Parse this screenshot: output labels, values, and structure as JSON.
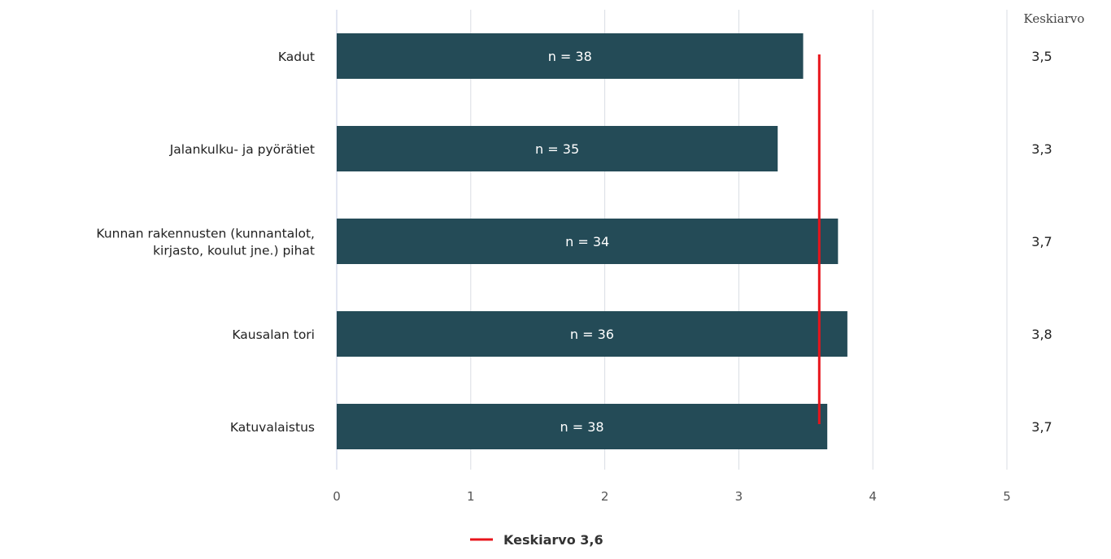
{
  "chart_data": {
    "type": "bar",
    "orientation": "horizontal",
    "categories": [
      [
        "Kadut"
      ],
      [
        "Jalankulku- ja pyörätiet"
      ],
      [
        "Kunnan rakennusten (kunnantalot,",
        "kirjasto, koulut jne.) pihat"
      ],
      [
        "Kausalan tori"
      ],
      [
        "Katuvalaistus"
      ]
    ],
    "values": [
      3.48,
      3.29,
      3.74,
      3.81,
      3.66
    ],
    "bar_labels": [
      "n = 38",
      "n = 35",
      "n = 34",
      "n = 36",
      "n = 38"
    ],
    "averages_column_title": "Keskiarvo",
    "averages": [
      "3,5",
      "3,3",
      "3,7",
      "3,8",
      "3,7"
    ],
    "xlim": [
      0,
      5
    ],
    "x_ticks": [
      0,
      1,
      2,
      3,
      4,
      5
    ],
    "grid": true,
    "reference_line": {
      "value": 3.6,
      "label": "Keskiarvo 3,6",
      "color": "#e8141b"
    },
    "bar_color": "#244b57",
    "legend_position": "bottom"
  }
}
